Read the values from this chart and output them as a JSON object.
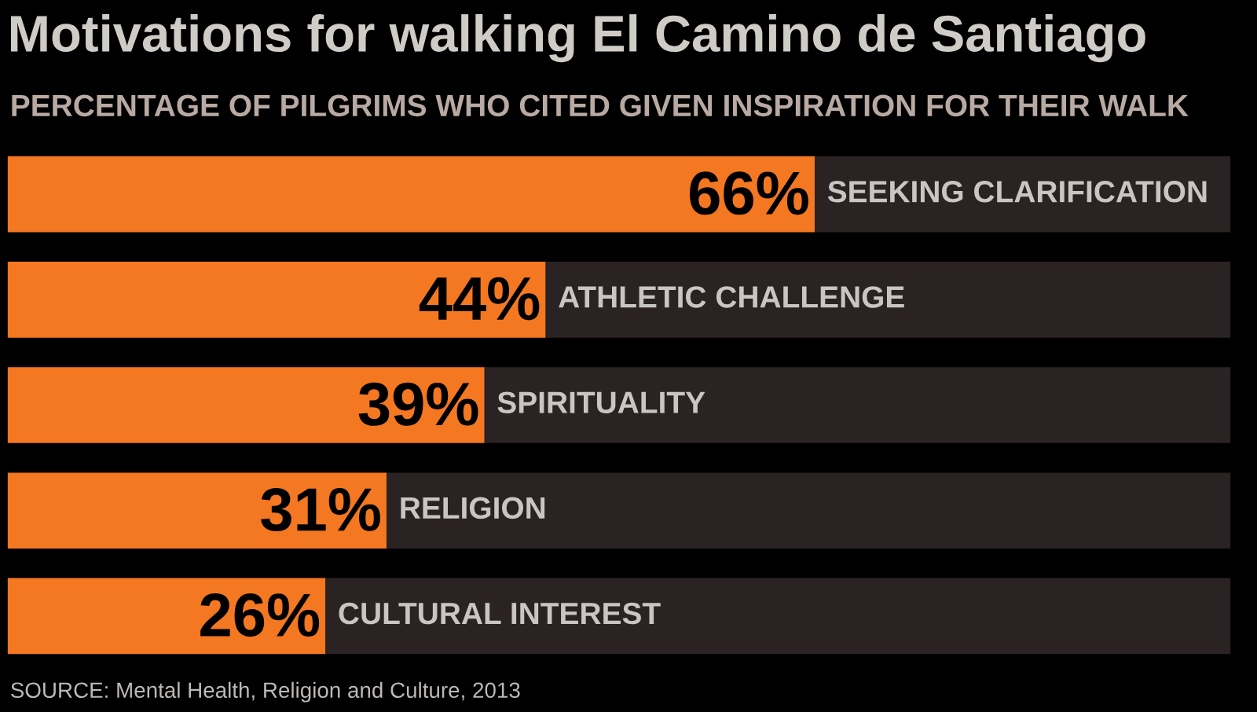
{
  "chart_data": {
    "type": "bar",
    "orientation": "horizontal",
    "stacked": true,
    "title": "Motivations for walking El Camino de Santiago",
    "subtitle": "PERCENTAGE OF PILGRIMS WHO CITED GIVEN INSPIRATION FOR THEIR WALK",
    "categories": [
      "SEEKING CLARIFICATION",
      "ATHLETIC CHALLENGE",
      "SPIRITUALITY",
      "RELIGION",
      "CULTURAL INTEREST"
    ],
    "series": [
      {
        "color": "#f47721",
        "values": [
          66,
          44,
          39,
          31,
          26
        ],
        "value_labels": [
          "66%",
          "44%",
          "39%",
          "31%",
          "26%"
        ]
      },
      {
        "color": "#2b2223",
        "values": [
          34,
          56,
          61,
          69,
          74
        ]
      }
    ],
    "xlim": [
      0,
      100
    ],
    "tick_labels": false,
    "annotations": [
      "SOURCE: Mental Health, Religion and Culture, 2013"
    ]
  }
}
